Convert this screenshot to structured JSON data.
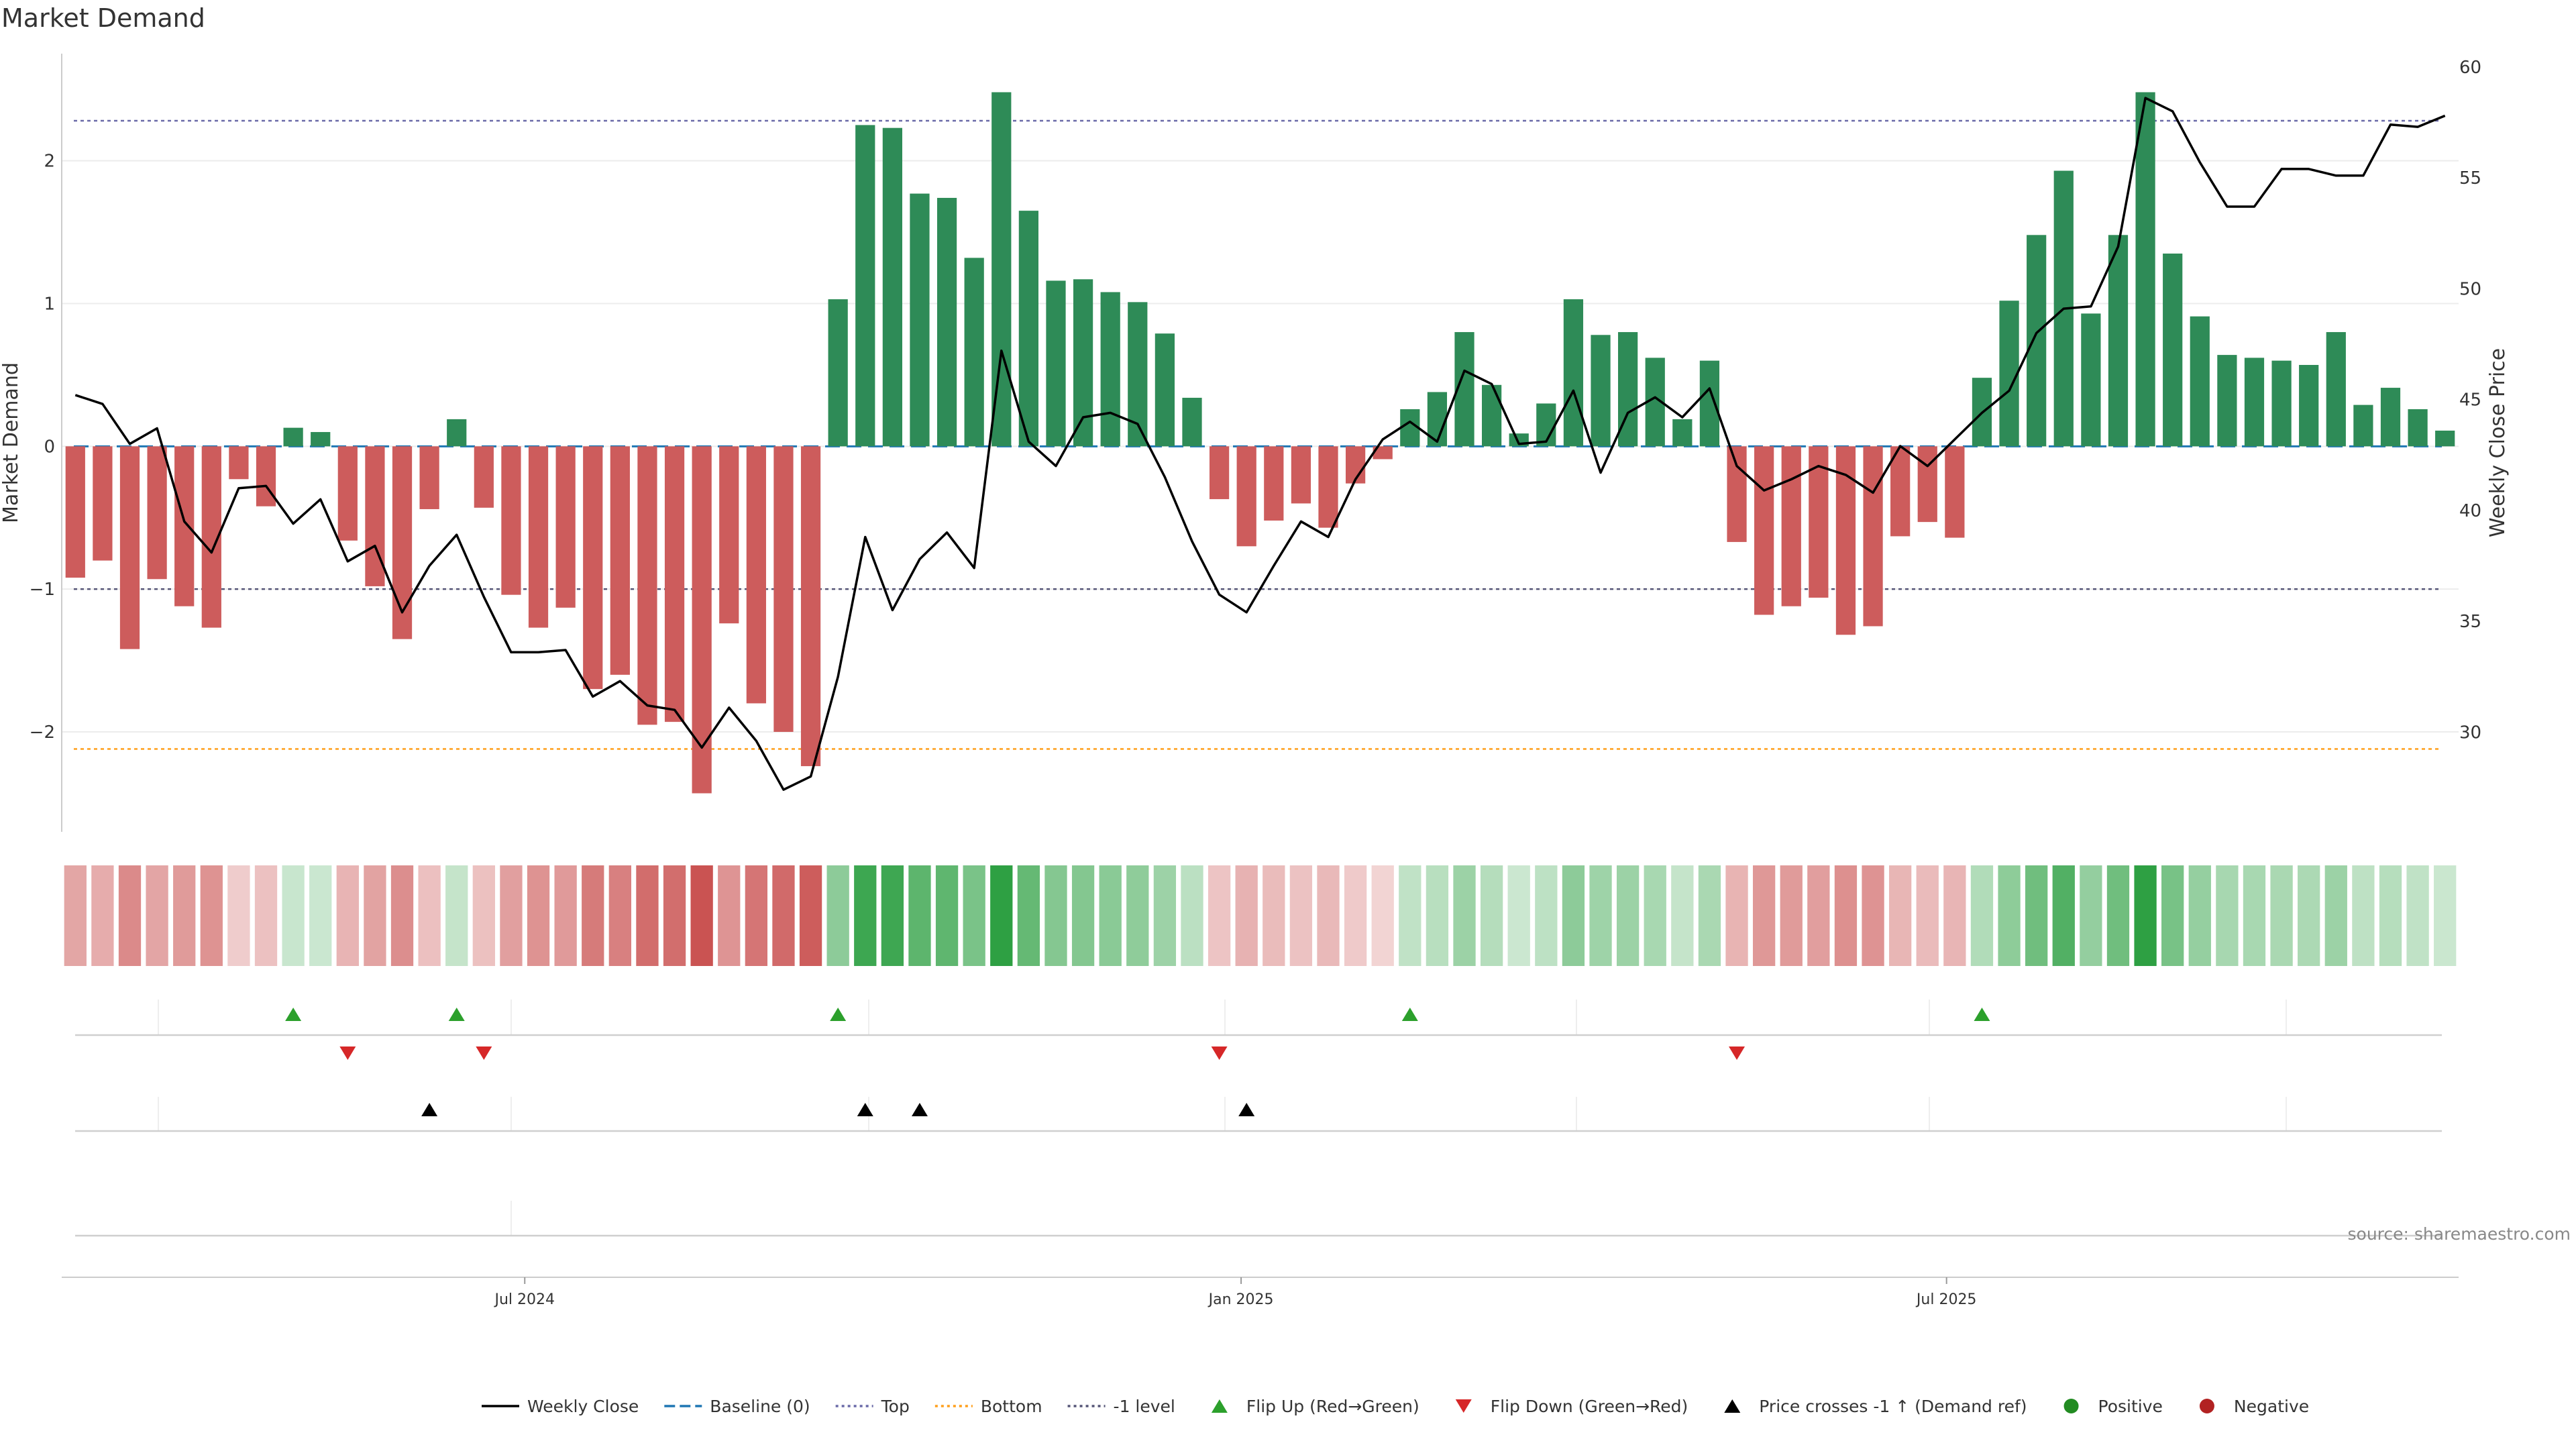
{
  "chart_data": {
    "type": "bar+line",
    "title": "Market Demand",
    "ylabel": "Market Demand",
    "y2label": "Weekly Close Price",
    "ylim": [
      -2.7,
      2.75
    ],
    "y2lim": [
      25.5,
      60.6
    ],
    "yticks": [
      {
        "v": -2,
        "label": "−2"
      },
      {
        "v": -1,
        "label": "−1"
      },
      {
        "v": 0,
        "label": "0"
      },
      {
        "v": 1,
        "label": "1"
      },
      {
        "v": 2,
        "label": "2"
      }
    ],
    "y2ticks": [
      30,
      35,
      40,
      45,
      50,
      55,
      60
    ],
    "reference_lines": {
      "top": 2.28,
      "bottom": -2.12,
      "minus_one_level": -1.0,
      "baseline": 0
    },
    "x_ticks": [
      {
        "index": 16.5,
        "label": "Jul 2024"
      },
      {
        "index": 42.8,
        "label": "Jan 2025"
      },
      {
        "index": 68.7,
        "label": "Jul 2025"
      }
    ],
    "series": [
      {
        "name": "Market Demand",
        "type": "bar",
        "colors": {
          "positive": "#2e8b57",
          "negative": "#cd5c5c"
        },
        "values": [
          -0.92,
          -0.8,
          -1.42,
          -0.93,
          -1.12,
          -1.27,
          -0.23,
          -0.42,
          0.13,
          0.1,
          -0.66,
          -0.98,
          -1.35,
          -0.44,
          0.19,
          -0.43,
          -1.04,
          -1.27,
          -1.13,
          -1.7,
          -1.6,
          -1.95,
          -1.93,
          -2.43,
          -1.24,
          -1.8,
          -2.0,
          -2.24,
          1.03,
          2.25,
          2.23,
          1.77,
          1.74,
          1.32,
          2.48,
          1.65,
          1.16,
          1.17,
          1.08,
          1.01,
          0.79,
          0.34,
          -0.37,
          -0.7,
          -0.52,
          -0.4,
          -0.57,
          -0.26,
          -0.09,
          0.26,
          0.38,
          0.8,
          0.43,
          0.09,
          0.3,
          1.03,
          0.78,
          0.8,
          0.62,
          0.19,
          0.6,
          -0.67,
          -1.18,
          -1.12,
          -1.06,
          -1.32,
          -1.26,
          -0.63,
          -0.53,
          -0.64,
          0.48,
          1.02,
          1.48,
          1.93,
          0.93,
          1.48,
          2.48,
          1.35,
          0.91,
          0.64,
          0.62,
          0.6,
          0.57,
          0.8,
          0.29,
          0.41,
          0.26,
          0.11
        ]
      },
      {
        "name": "Weekly Close",
        "type": "line",
        "axis": "right",
        "color": "#000000",
        "values": [
          45.2,
          44.8,
          43.0,
          43.7,
          39.5,
          38.1,
          41.0,
          41.1,
          39.4,
          40.5,
          37.7,
          38.4,
          35.4,
          37.5,
          38.9,
          36.1,
          33.6,
          33.6,
          33.7,
          31.6,
          32.3,
          31.2,
          31.0,
          29.3,
          31.1,
          29.6,
          27.4,
          28.0,
          32.5,
          38.8,
          35.5,
          37.8,
          39.0,
          37.4,
          47.2,
          43.1,
          42.0,
          44.2,
          44.4,
          43.9,
          41.5,
          38.6,
          36.2,
          35.4,
          37.5,
          39.5,
          38.8,
          41.4,
          43.2,
          44.0,
          43.1,
          46.3,
          45.7,
          43.0,
          43.1,
          45.4,
          41.7,
          44.4,
          45.1,
          44.2,
          45.5,
          42.0,
          40.9,
          41.4,
          42.0,
          41.6,
          40.8,
          42.9,
          42.0,
          43.2,
          44.4,
          45.4,
          48.0,
          49.1,
          49.2,
          51.9,
          58.6,
          58.0,
          55.7,
          53.7,
          53.7,
          55.4,
          55.4,
          55.1,
          55.1,
          57.4,
          57.3,
          57.8
        ]
      }
    ],
    "strip": {
      "name": "Demand intensity strip",
      "source": "Market Demand"
    },
    "events": {
      "flip_up": [
        8,
        14,
        28,
        49,
        70
      ],
      "flip_down": [
        10,
        15,
        42,
        61
      ],
      "price_cross_minus_one_up": [
        13,
        29,
        31,
        43
      ]
    },
    "legend": [
      {
        "label": "Weekly Close",
        "marker": "line-solid",
        "color": "#000000"
      },
      {
        "label": "Baseline (0)",
        "marker": "line-dashed",
        "color": "#1f77b4"
      },
      {
        "label": "Top",
        "marker": "line-dotted",
        "color": "#6a6aa8"
      },
      {
        "label": "Bottom",
        "marker": "line-dotted",
        "color": "#ff9f1c"
      },
      {
        "label": "-1 level",
        "marker": "line-dotted",
        "color": "#555577"
      },
      {
        "label": "Flip Up (Red→Green)",
        "marker": "triangle-up",
        "color": "#2ca02c"
      },
      {
        "label": "Flip Down (Green→Red)",
        "marker": "triangle-down",
        "color": "#d62728"
      },
      {
        "label": "Price crosses -1 ↑ (Demand ref)",
        "marker": "triangle-up",
        "color": "#000000"
      },
      {
        "label": "Positive",
        "marker": "circle",
        "color": "#228b22"
      },
      {
        "label": "Negative",
        "marker": "circle",
        "color": "#b22222"
      }
    ],
    "source": "source: sharemaestro.com"
  }
}
